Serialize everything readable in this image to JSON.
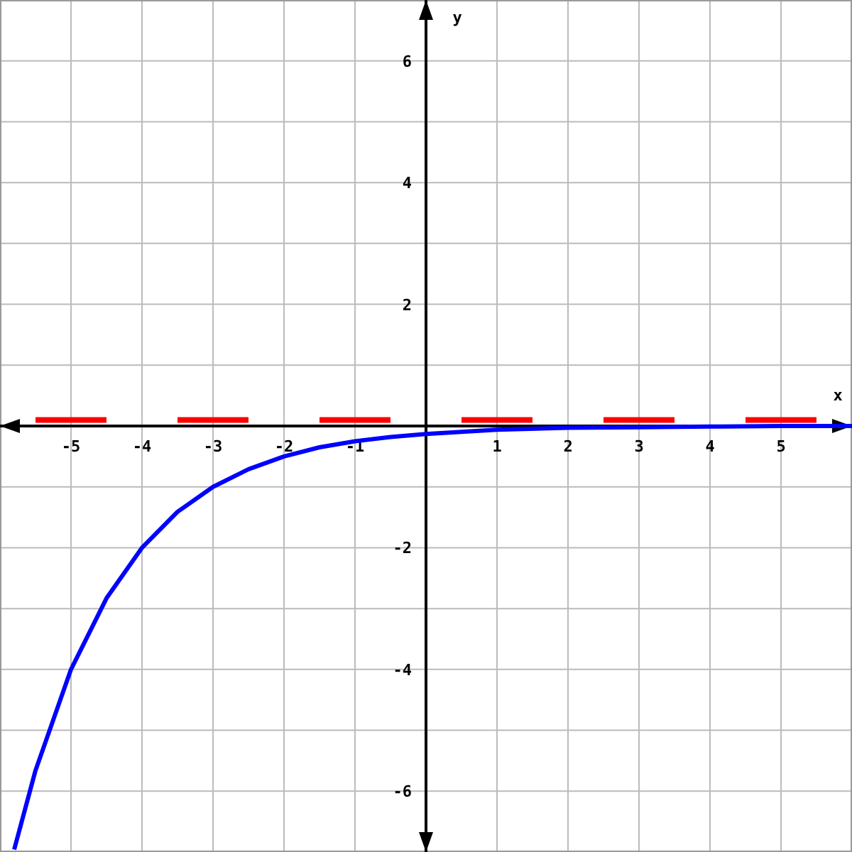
{
  "chart_data": {
    "type": "line",
    "xlabel": "x",
    "ylabel": "y",
    "xlim": [
      -6,
      6
    ],
    "ylim": [
      -7,
      7
    ],
    "xticks": [
      -5,
      -4,
      -3,
      -2,
      -1,
      1,
      2,
      3,
      4,
      5
    ],
    "yticks": [
      {
        "value": -7,
        "label": null
      },
      -6,
      {
        "value": -5,
        "label": null
      },
      -4,
      {
        "value": -3,
        "label": null
      },
      -2,
      {
        "value": -1,
        "label": null
      },
      {
        "value": 1,
        "label": null
      },
      2,
      {
        "value": 3,
        "label": null
      },
      4,
      {
        "value": 5,
        "label": null
      },
      6,
      {
        "value": 7,
        "label": null
      }
    ],
    "grid": true,
    "marker": "none",
    "line_style": "solid",
    "series": [
      {
        "color": "#0000ff",
        "x": [
          -5.8,
          -5.5,
          -5,
          -4.5,
          -4,
          -3.5,
          -3,
          -2.5,
          -2,
          -1.5,
          -1,
          -0.5,
          0,
          1,
          2,
          3,
          4,
          5,
          6
        ],
        "values": [
          -6.96,
          -5.66,
          -4,
          -2.83,
          -2,
          -1.41,
          -1,
          -0.71,
          -0.5,
          -0.35,
          -0.25,
          -0.18,
          -0.13,
          -0.06,
          -0.03,
          -0.02,
          -0.01,
          0,
          0
        ]
      }
    ],
    "ref_lines": [
      {
        "axis": "y",
        "value": 0.1,
        "color": "#ff0000",
        "line_style": "dashed"
      }
    ]
  }
}
